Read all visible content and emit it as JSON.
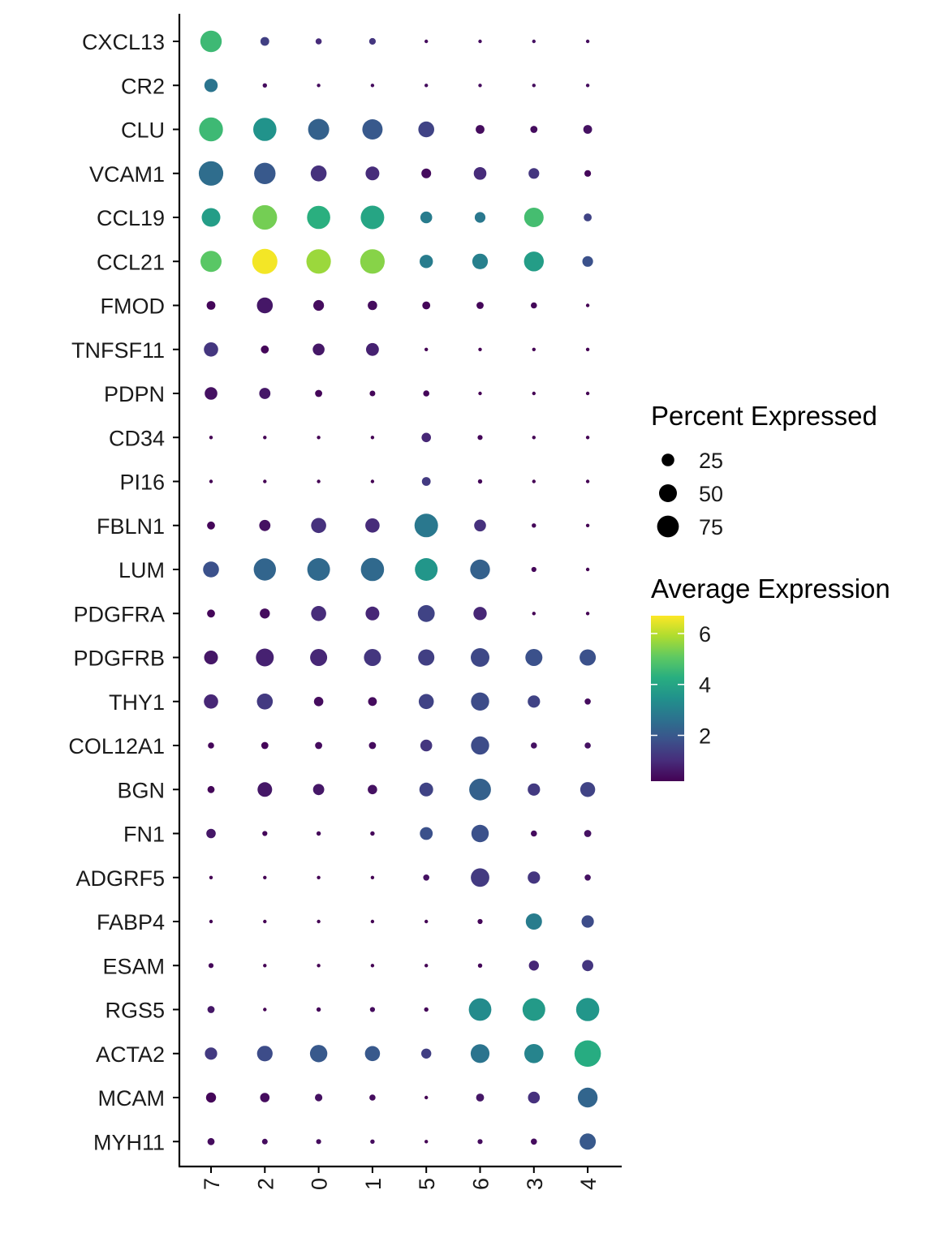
{
  "chart_data": {
    "type": "dot",
    "title": "",
    "xlabel": "",
    "ylabel": "",
    "clusters": [
      "7",
      "2",
      "0",
      "1",
      "5",
      "6",
      "3",
      "4"
    ],
    "genes": [
      "CXCL13",
      "CR2",
      "CLU",
      "VCAM1",
      "CCL19",
      "CCL21",
      "FMOD",
      "TNFSF11",
      "PDPN",
      "CD34",
      "PI16",
      "FBLN1",
      "LUM",
      "PDGFRA",
      "PDGFRB",
      "THY1",
      "COL12A1",
      "BGN",
      "FN1",
      "ADGRF5",
      "FABP4",
      "ESAM",
      "RGS5",
      "ACTA2",
      "MCAM",
      "MYH11"
    ],
    "percent_expressed": [
      [
        72,
        12,
        6,
        7,
        2,
        2,
        2,
        2
      ],
      [
        28,
        3,
        2,
        2,
        2,
        2,
        2,
        2
      ],
      [
        90,
        85,
        70,
        65,
        40,
        12,
        8,
        12
      ],
      [
        95,
        72,
        40,
        30,
        15,
        25,
        18,
        7
      ],
      [
        55,
        95,
        85,
        88,
        22,
        18,
        60,
        10
      ],
      [
        70,
        100,
        95,
        95,
        28,
        38,
        62,
        18
      ],
      [
        12,
        40,
        18,
        14,
        10,
        8,
        6,
        2
      ],
      [
        32,
        10,
        22,
        26,
        2,
        2,
        2,
        2
      ],
      [
        25,
        20,
        8,
        5,
        6,
        2,
        2,
        2
      ],
      [
        2,
        2,
        2,
        2,
        14,
        4,
        2,
        2
      ],
      [
        2,
        2,
        2,
        2,
        12,
        3,
        2,
        2
      ],
      [
        10,
        20,
        36,
        32,
        88,
        22,
        3,
        2
      ],
      [
        40,
        78,
        82,
        85,
        82,
        62,
        4,
        2
      ],
      [
        10,
        16,
        36,
        30,
        45,
        28,
        2,
        2
      ],
      [
        30,
        50,
        46,
        46,
        42,
        55,
        46,
        42
      ],
      [
        32,
        40,
        14,
        12,
        36,
        52,
        24,
        6
      ],
      [
        6,
        8,
        8,
        8,
        22,
        52,
        6,
        6
      ],
      [
        8,
        34,
        20,
        14,
        30,
        75,
        24,
        35
      ],
      [
        14,
        4,
        3,
        3,
        26,
        48,
        6,
        8
      ],
      [
        2,
        2,
        2,
        2,
        6,
        54,
        24,
        6
      ],
      [
        2,
        2,
        2,
        2,
        2,
        4,
        42,
        24
      ],
      [
        4,
        2,
        2,
        2,
        2,
        3,
        16,
        20
      ],
      [
        8,
        2,
        3,
        4,
        3,
        80,
        82,
        85
      ],
      [
        24,
        38,
        48,
        36,
        16,
        56,
        58,
        110
      ],
      [
        16,
        14,
        9,
        6,
        2,
        10,
        22,
        62
      ],
      [
        8,
        5,
        4,
        3,
        2,
        4,
        6,
        42
      ]
    ],
    "average_expression": [
      [
        4.6,
        1.4,
        1.0,
        1.2,
        0.4,
        0.4,
        0.5,
        0.4
      ],
      [
        2.7,
        0.4,
        0.4,
        0.4,
        0.4,
        0.4,
        0.4,
        0.4
      ],
      [
        4.6,
        3.5,
        2.2,
        2.0,
        1.5,
        0.4,
        0.4,
        0.5
      ],
      [
        2.5,
        2.0,
        1.1,
        1.0,
        0.4,
        1.0,
        1.2,
        0.3
      ],
      [
        3.8,
        5.3,
        4.3,
        4.0,
        2.9,
        2.8,
        4.7,
        1.5
      ],
      [
        5.0,
        6.6,
        5.7,
        5.5,
        2.9,
        3.0,
        3.8,
        1.8
      ],
      [
        0.3,
        0.6,
        0.4,
        0.4,
        0.3,
        0.3,
        0.3,
        0.2
      ],
      [
        1.2,
        0.3,
        0.6,
        0.8,
        0.2,
        0.2,
        0.2,
        0.2
      ],
      [
        0.5,
        0.6,
        0.3,
        0.3,
        0.3,
        0.2,
        0.2,
        0.2
      ],
      [
        0.2,
        0.2,
        0.2,
        0.2,
        0.9,
        0.3,
        0.2,
        0.2
      ],
      [
        0.2,
        0.2,
        0.2,
        0.2,
        1.3,
        0.3,
        0.2,
        0.2
      ],
      [
        0.3,
        0.5,
        1.1,
        1.0,
        2.8,
        1.1,
        0.3,
        0.2
      ],
      [
        1.8,
        2.3,
        2.4,
        2.4,
        3.6,
        2.2,
        0.3,
        0.2
      ],
      [
        0.3,
        0.4,
        1.0,
        0.9,
        1.5,
        0.9,
        0.2,
        0.2
      ],
      [
        0.6,
        0.8,
        0.9,
        1.2,
        1.4,
        1.6,
        1.8,
        1.8
      ],
      [
        0.9,
        1.3,
        0.4,
        0.4,
        1.5,
        1.7,
        1.5,
        0.4
      ],
      [
        0.3,
        0.3,
        0.4,
        0.4,
        1.2,
        1.7,
        0.5,
        0.5
      ],
      [
        0.3,
        0.6,
        0.6,
        0.5,
        1.5,
        2.2,
        1.3,
        1.5
      ],
      [
        0.6,
        0.3,
        0.3,
        0.3,
        1.8,
        1.8,
        0.4,
        0.5
      ],
      [
        0.2,
        0.2,
        0.2,
        0.2,
        0.5,
        1.3,
        1.2,
        0.5
      ],
      [
        0.2,
        0.2,
        0.2,
        0.2,
        0.2,
        0.3,
        2.9,
        1.7
      ],
      [
        0.3,
        0.2,
        0.2,
        0.2,
        0.2,
        0.3,
        0.9,
        1.2
      ],
      [
        0.6,
        0.2,
        0.3,
        0.4,
        0.3,
        3.3,
        3.7,
        3.6
      ],
      [
        1.3,
        1.7,
        2.0,
        2.0,
        1.4,
        2.7,
        3.1,
        4.2
      ],
      [
        0.3,
        0.4,
        0.5,
        0.4,
        0.2,
        0.6,
        1.1,
        2.3
      ],
      [
        0.4,
        0.4,
        0.4,
        0.4,
        0.2,
        0.4,
        0.4,
        2.0
      ]
    ],
    "legend": {
      "position": "right",
      "size_title": "Percent Expressed",
      "size_breaks": [
        25,
        50,
        75
      ],
      "color_title": "Average Expression",
      "color_ticks": [
        2,
        4,
        6
      ],
      "color_range": [
        0.2,
        6.7
      ],
      "colormap": "viridis"
    },
    "grid": false
  }
}
